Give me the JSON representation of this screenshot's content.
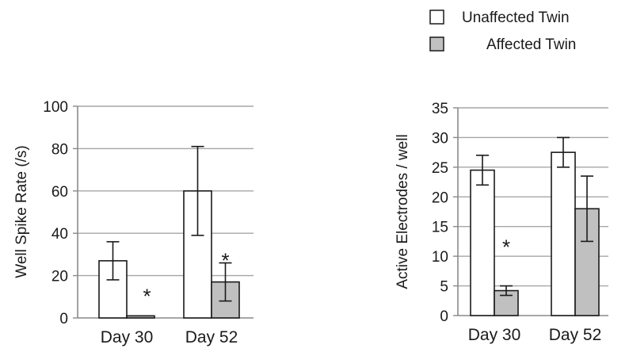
{
  "legend": {
    "placement": "top-right",
    "items": [
      {
        "label": "Unaffected Twin",
        "color": "#ffffff"
      },
      {
        "label": "Affected Twin",
        "color": "#c0c0c0"
      }
    ]
  },
  "chart_data": [
    {
      "type": "bar",
      "ylabel": "Well Spike Rate (/s)",
      "ylim": [
        0,
        100
      ],
      "yticks": [
        "0",
        "20",
        "40",
        "60",
        "80",
        "100"
      ],
      "grid": true,
      "categories": [
        "Day 30",
        "Day 52"
      ],
      "series": [
        {
          "name": "Unaffected Twin",
          "values": [
            27,
            60
          ],
          "errors": [
            9,
            21
          ]
        },
        {
          "name": "Affected Twin",
          "values": [
            1,
            17
          ],
          "errors": [
            0,
            9
          ]
        }
      ],
      "annotations": [
        "*",
        "*"
      ]
    },
    {
      "type": "bar",
      "ylabel": "Active Electrodes / well",
      "ylim": [
        0,
        35
      ],
      "yticks": [
        "0",
        "5",
        "10",
        "15",
        "20",
        "25",
        "30",
        "35"
      ],
      "grid": true,
      "categories": [
        "Day 30",
        "Day 52"
      ],
      "series": [
        {
          "name": "Unaffected Twin",
          "values": [
            24.5,
            27.5
          ],
          "errors": [
            2.5,
            2.5
          ]
        },
        {
          "name": "Affected Twin",
          "values": [
            4.2,
            18
          ],
          "errors": [
            0.8,
            5.5
          ]
        }
      ],
      "annotations": [
        "*"
      ]
    }
  ]
}
